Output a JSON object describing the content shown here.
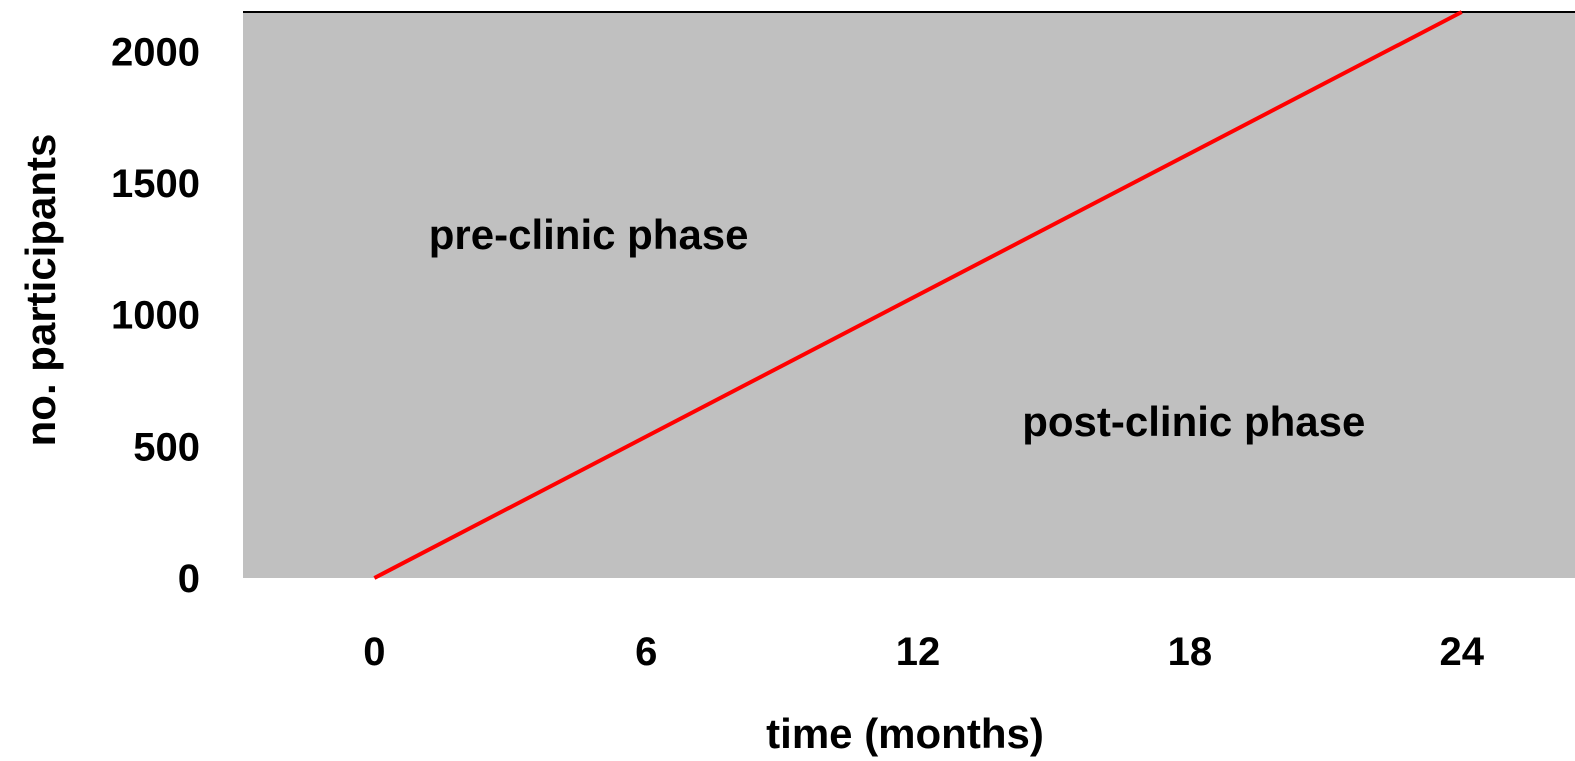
{
  "chart_data": {
    "type": "line",
    "xlabel": "time (months)",
    "ylabel": "no. participants",
    "x_ticks": [
      0,
      6,
      12,
      18,
      24
    ],
    "y_ticks": [
      0,
      500,
      1000,
      1500,
      2000
    ],
    "xlim": [
      -2.9,
      26.5
    ],
    "ylim": [
      0,
      2150
    ],
    "grid": false,
    "series": [
      {
        "x": [
          0,
          24
        ],
        "y": [
          0,
          2150
        ]
      }
    ],
    "annotations": [
      {
        "text": "pre-clinic phase",
        "x": 1.2,
        "y": 1250
      },
      {
        "text": "post-clinic phase",
        "x": 14.3,
        "y": 540
      }
    ],
    "colors": {
      "plot_background": "#c0c0c0",
      "line": "#ff0000"
    }
  }
}
